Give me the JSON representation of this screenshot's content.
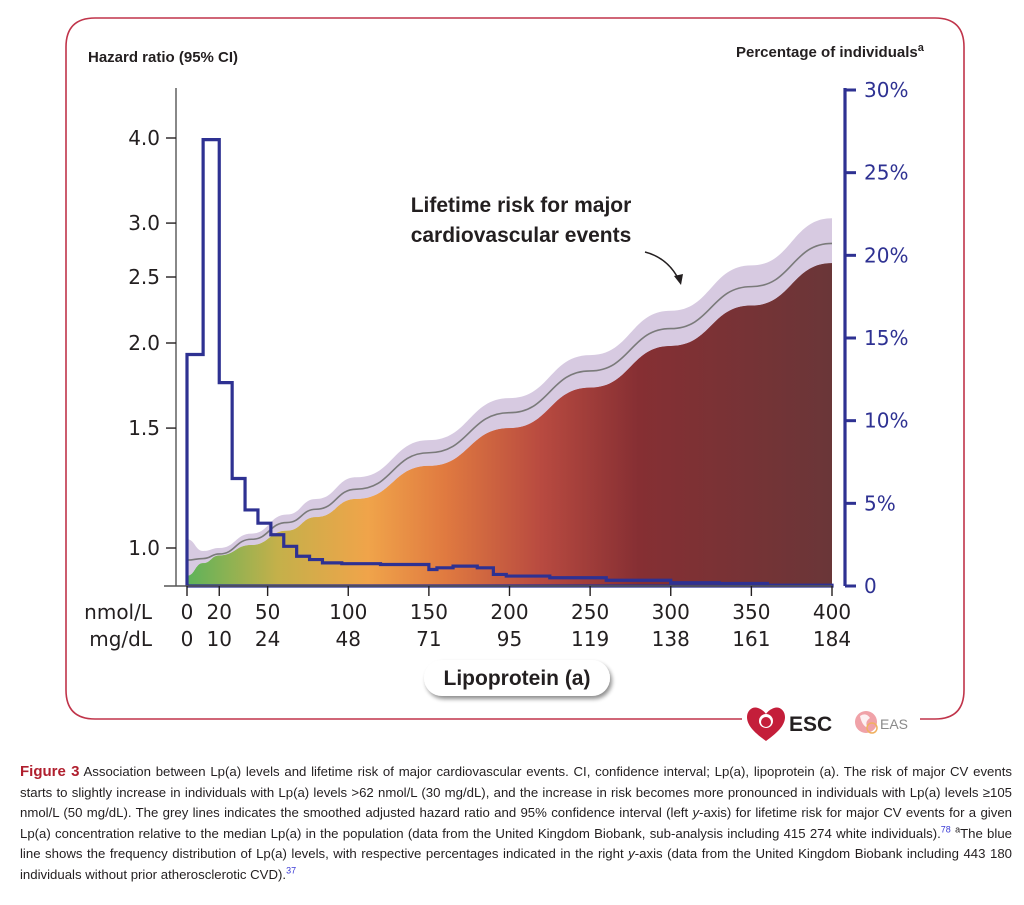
{
  "figure": {
    "caption_label": "Figure 3",
    "caption_parts": {
      "p1": " Association between Lp(a) levels and lifetime risk of major cardiovascular events. CI, confidence interval; Lp(a), lipoprotein (a). The risk of major CV events starts to slightly increase in individuals with Lp(a) levels >62 nmol/L (30 mg/dL), and the increase in risk becomes more pronounced in individuals with Lp(a) levels ≥105 nmol/L (50 mg/dL). The grey lines indicates the smoothed adjusted hazard ratio and 95% confidence interval (left ",
      "p1_italic": "y",
      "p2": "-axis) for lifetime risk for major CV events for a given Lp(a) concentration relative to the median Lp(a) in the population (data from the United Kingdom Biobank, sub-analysis including 415 274 white individuals).",
      "ref1": "78",
      "footnote_mark": "a",
      "p3": "The blue line shows the frequency distribution of Lp(a) levels, with respective percentages indicated in the right ",
      "p3_italic": "y",
      "p4": "-axis (data from the United Kingdom Biobank including 443 180 individuals without prior atherosclerotic CVD).",
      "ref2": "37"
    },
    "logos": {
      "esc": "ESC",
      "eas": "EAS"
    },
    "colors": {
      "frame": "#c0344a",
      "histogram": "#2e3192",
      "ci_band": "#d5c7df",
      "hr_line": "#7a7a7a",
      "axis_text": "#231f20",
      "right_axis_text": "#2e3192",
      "caption_label": "#b01f2e",
      "gradient_stops": [
        "#5db35a",
        "#c4b04a",
        "#f0a44a",
        "#e07a40",
        "#b84a40",
        "#862f33",
        "#6a3638"
      ]
    }
  },
  "chart_data": {
    "type": "line",
    "title": "",
    "annotation": [
      "Lifetime risk for major",
      "cardiovascular events"
    ],
    "xlabel": "Lipoprotein (a)",
    "x_unit_labels": [
      "nmol/L",
      "mg/dL"
    ],
    "x_ticks_nmol": [
      0,
      20,
      50,
      100,
      150,
      200,
      250,
      300,
      350,
      400
    ],
    "x_ticks_mgdl": [
      "0",
      "10",
      "24",
      "48",
      "71",
      "95",
      "119",
      "138",
      "161",
      "184"
    ],
    "xlim": [
      0,
      400
    ],
    "left_axis": {
      "label": "Hazard ratio (95% CI)",
      "scale": "log",
      "ticks": [
        1.0,
        1.5,
        2.0,
        2.5,
        3.0,
        4.0
      ],
      "tick_labels": [
        "1.0",
        "1.5",
        "2.0",
        "2.5",
        "3.0",
        "4.0"
      ],
      "ylim": [
        0.9,
        5.0
      ]
    },
    "right_axis": {
      "label": "Percentage of individuals",
      "label_superscript": "a",
      "ticks": [
        0,
        5,
        10,
        15,
        20,
        25,
        30
      ],
      "tick_labels": [
        "0",
        "5%",
        "10%",
        "15%",
        "20%",
        "25%",
        "30%"
      ],
      "ylim": [
        0,
        30
      ]
    },
    "series": [
      {
        "name": "Hazard ratio (smoothed)",
        "axis": "left",
        "x": [
          0,
          10,
          20,
          40,
          62,
          80,
          105,
          150,
          200,
          250,
          300,
          350,
          400
        ],
        "y": [
          0.96,
          0.965,
          0.98,
          1.03,
          1.09,
          1.14,
          1.22,
          1.38,
          1.58,
          1.82,
          2.1,
          2.42,
          2.8
        ]
      },
      {
        "name": "95% CI upper",
        "axis": "left",
        "x": [
          0,
          10,
          20,
          40,
          62,
          80,
          105,
          150,
          200,
          250,
          300,
          350,
          400
        ],
        "y": [
          1.03,
          0.99,
          1.0,
          1.05,
          1.12,
          1.18,
          1.27,
          1.44,
          1.66,
          1.92,
          2.23,
          2.6,
          3.05
        ]
      },
      {
        "name": "95% CI lower",
        "axis": "left",
        "x": [
          0,
          10,
          20,
          40,
          62,
          80,
          105,
          150,
          200,
          250,
          300,
          350,
          400
        ],
        "y": [
          0.91,
          0.95,
          0.975,
          1.01,
          1.06,
          1.11,
          1.18,
          1.32,
          1.5,
          1.72,
          1.98,
          2.27,
          2.62
        ]
      },
      {
        "name": "Lp(a) frequency distribution",
        "axis": "right",
        "type": "step",
        "bin_edges": [
          0,
          10,
          20,
          28,
          36,
          44,
          52,
          60,
          68,
          76,
          84,
          96,
          120,
          150,
          155,
          165,
          180,
          190,
          198,
          225,
          260,
          300,
          330,
          360,
          400
        ],
        "values": [
          14.0,
          27.0,
          12.3,
          6.5,
          4.6,
          3.8,
          3.1,
          2.4,
          1.8,
          1.6,
          1.4,
          1.35,
          1.3,
          1.0,
          1.1,
          1.2,
          1.1,
          0.7,
          0.6,
          0.5,
          0.35,
          0.2,
          0.15,
          0.05
        ]
      }
    ],
    "grid": false,
    "legend": "none"
  }
}
